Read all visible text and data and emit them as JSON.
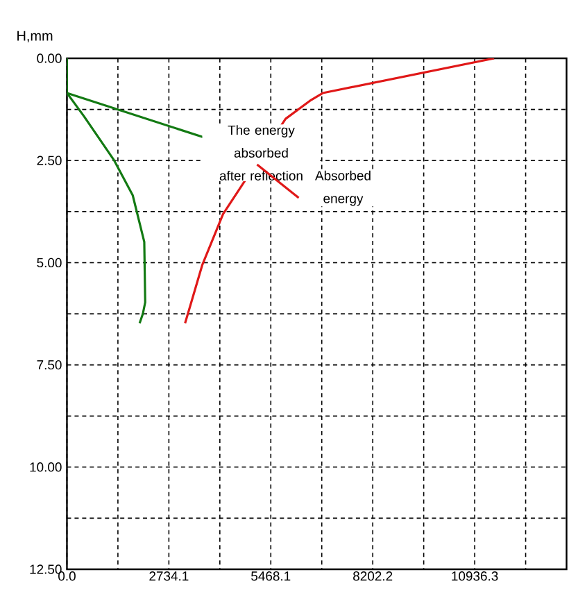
{
  "chart_data": {
    "type": "line",
    "ylabel": "H,mm",
    "series": [
      {
        "color": "#e01818",
        "x": [
          11458,
          6861,
          6548,
          5865,
          4187,
          3628,
          3318,
          3169
        ],
        "values": [
          0,
          0.85,
          1.02,
          1.48,
          3.81,
          5.06,
          6.02,
          6.48
        ]
      },
      {
        "color": "#137a13",
        "x": [
          0,
          0,
          459,
          1268,
          1764,
          2074,
          2099,
          2036,
          1950
        ],
        "values": [
          0,
          0.85,
          1.42,
          2.5,
          3.35,
          4.49,
          5.97,
          6.25,
          6.48
        ]
      }
    ],
    "annotations": [
      {
        "text": "The energy absorbed after reflection",
        "x": 0,
        "y": 0.85
      },
      {
        "text": "Absorbed energy",
        "x": 5100,
        "y": 2.6
      }
    ],
    "xlim": [
      0,
      13400
    ],
    "ylim": [
      12.5,
      0
    ],
    "xticks": [
      {
        "value": 0,
        "label": "0.0"
      },
      {
        "value": 1367.05,
        "label": null
      },
      {
        "value": 2734.1,
        "label": "2734.1"
      },
      {
        "value": 4101.15,
        "label": null
      },
      {
        "value": 5468.1,
        "label": "5468.1"
      },
      {
        "value": 6835.15,
        "label": null
      },
      {
        "value": 8202.2,
        "label": "8202.2"
      },
      {
        "value": 9569.25,
        "label": null
      },
      {
        "value": 10936.3,
        "label": "10936.3"
      },
      {
        "value": 12303.35,
        "label": null
      }
    ],
    "yticks": [
      {
        "value": 0,
        "label": "0.00"
      },
      {
        "value": 1.25,
        "label": null
      },
      {
        "value": 2.5,
        "label": "2.50"
      },
      {
        "value": 3.75,
        "label": null
      },
      {
        "value": 5,
        "label": "5.00"
      },
      {
        "value": 6.25,
        "label": null
      },
      {
        "value": 7.5,
        "label": "7.50"
      },
      {
        "value": 8.75,
        "label": null
      },
      {
        "value": 10,
        "label": "10.00"
      },
      {
        "value": 11.25,
        "label": null
      },
      {
        "value": 12.5,
        "label": "12.50"
      }
    ],
    "grid": true,
    "line_style": "solid",
    "marker": "none"
  }
}
